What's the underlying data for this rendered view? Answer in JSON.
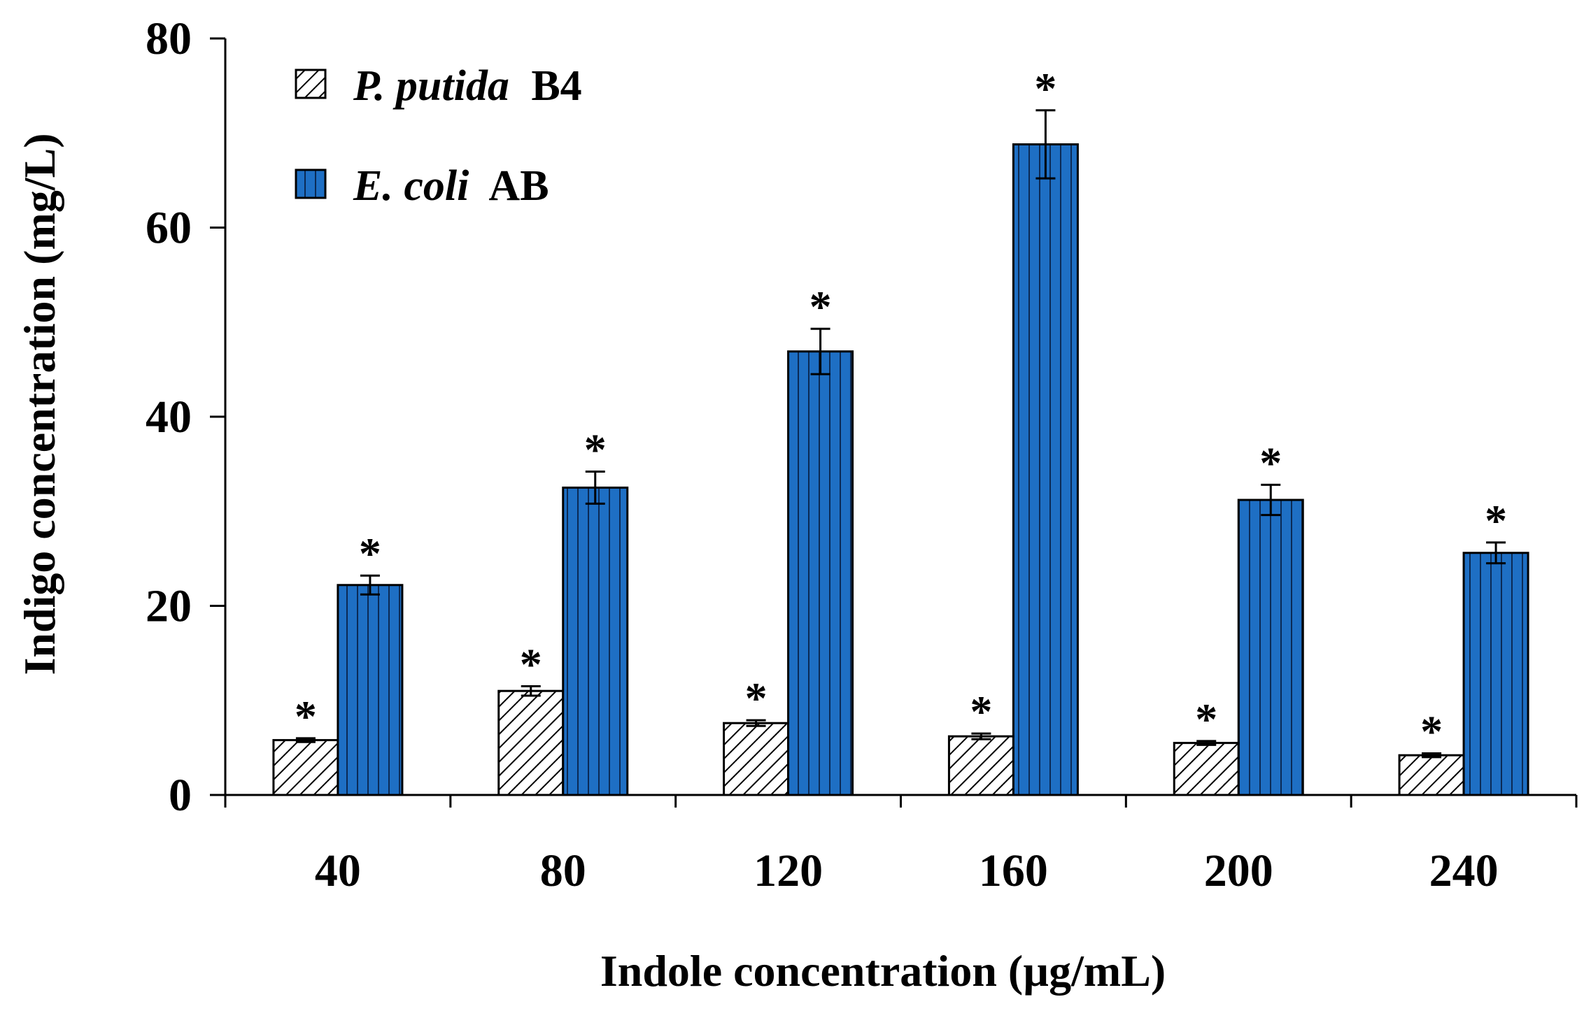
{
  "chart_data": {
    "type": "bar",
    "xlabel": "Indole concentration (µg/mL)",
    "ylabel": "Indigo concentration (mg/L)",
    "ylim": [
      0,
      80
    ],
    "yticks": [
      0,
      20,
      40,
      60,
      80
    ],
    "categories": [
      "40",
      "80",
      "120",
      "160",
      "200",
      "240"
    ],
    "legend_position": "top-left",
    "series": [
      {
        "name": "P. putida B4",
        "name_italic": "P. putida",
        "name_plain": "B4",
        "pattern": "diagonal-hatch",
        "color": "#ffffff",
        "stroke": "#000000",
        "values": [
          5.8,
          11.0,
          7.6,
          6.2,
          5.5,
          4.2
        ],
        "errors": [
          0.2,
          0.5,
          0.3,
          0.3,
          0.2,
          0.2
        ],
        "significance": [
          "*",
          "*",
          "*",
          "*",
          "*",
          "*"
        ]
      },
      {
        "name": "E. coli AB",
        "name_italic": "E. coli",
        "name_plain": "AB",
        "pattern": "vertical-stripes",
        "color": "#1e6fc4",
        "stroke": "#000000",
        "values": [
          22.2,
          32.5,
          46.9,
          68.8,
          31.2,
          25.6
        ],
        "errors": [
          1.0,
          1.7,
          2.4,
          3.6,
          1.6,
          1.1
        ],
        "significance": [
          "*",
          "*",
          "*",
          "*",
          "*",
          "*"
        ]
      }
    ]
  }
}
